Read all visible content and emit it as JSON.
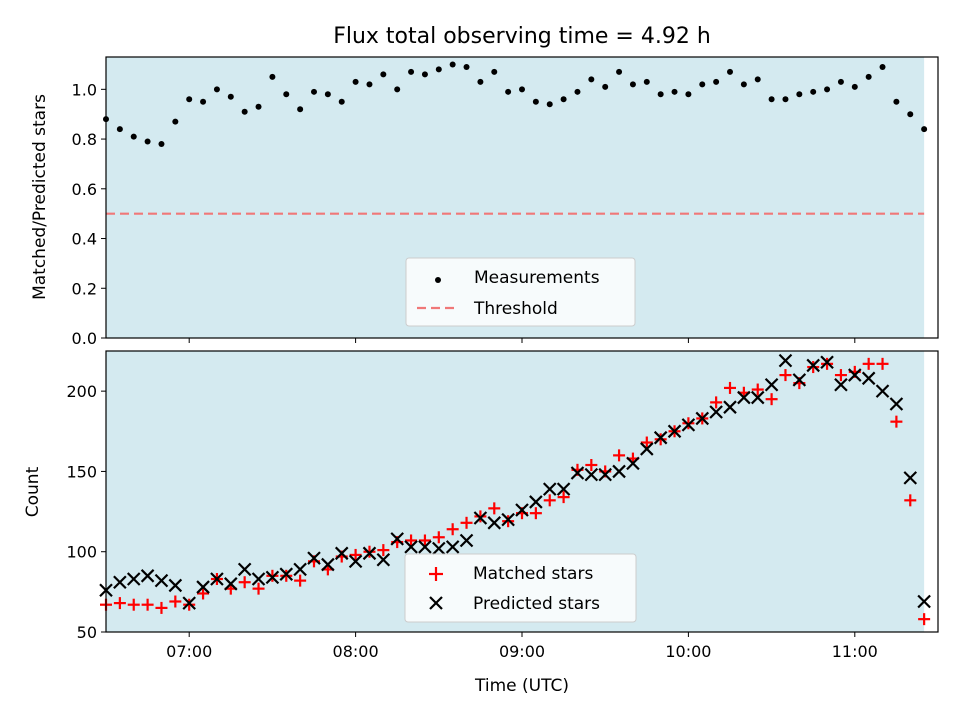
{
  "chart_data": {
    "title": "Flux total observing time = 4.92 h",
    "xlabel": "Time (UTC)",
    "x_ticks": [
      "07:00",
      "08:00",
      "09:00",
      "10:00",
      "11:00"
    ],
    "shaded_range": [
      "06:30",
      "11:25"
    ],
    "shade_color": "#d4eaf0",
    "panels": [
      {
        "name": "ratio",
        "type": "scatter",
        "ylabel": "Matched/Predicted stars",
        "ylim": [
          0,
          1.13
        ],
        "y_ticks": [
          "0.0",
          "0.2",
          "0.4",
          "0.6",
          "0.8",
          "1.0"
        ],
        "legend_position": "lower-center",
        "series": [
          {
            "name": "Measurements",
            "marker": "dot",
            "color": "#000000",
            "x": [
              "06:30",
              "06:35",
              "06:40",
              "06:45",
              "06:50",
              "06:55",
              "07:00",
              "07:05",
              "07:10",
              "07:15",
              "07:20",
              "07:25",
              "07:30",
              "07:35",
              "07:40",
              "07:45",
              "07:50",
              "07:55",
              "08:00",
              "08:05",
              "08:10",
              "08:15",
              "08:20",
              "08:25",
              "08:30",
              "08:35",
              "08:40",
              "08:45",
              "08:50",
              "08:55",
              "09:00",
              "09:05",
              "09:10",
              "09:15",
              "09:20",
              "09:25",
              "09:30",
              "09:35",
              "09:40",
              "09:45",
              "09:50",
              "09:55",
              "10:00",
              "10:05",
              "10:10",
              "10:15",
              "10:20",
              "10:25",
              "10:30",
              "10:35",
              "10:40",
              "10:45",
              "10:50",
              "10:55",
              "11:00",
              "11:05",
              "11:10",
              "11:15",
              "11:20",
              "11:25"
            ],
            "y": [
              0.88,
              0.84,
              0.81,
              0.79,
              0.78,
              0.87,
              0.96,
              0.95,
              1.0,
              0.97,
              0.91,
              0.93,
              1.05,
              0.98,
              0.92,
              0.99,
              0.98,
              0.95,
              1.03,
              1.02,
              1.06,
              1.0,
              1.07,
              1.06,
              1.08,
              1.1,
              1.09,
              1.03,
              1.07,
              0.99,
              1.0,
              0.95,
              0.94,
              0.96,
              0.99,
              1.04,
              1.01,
              1.07,
              1.02,
              1.03,
              0.98,
              0.99,
              0.98,
              1.02,
              1.03,
              1.07,
              1.02,
              1.04,
              0.96,
              0.96,
              0.98,
              0.99,
              1.0,
              1.03,
              1.01,
              1.05,
              1.09,
              0.95,
              0.9,
              0.84
            ]
          },
          {
            "name": "Threshold",
            "marker": "dashed-line",
            "color": "#f07878",
            "y_value": 0.5
          }
        ]
      },
      {
        "name": "counts",
        "type": "scatter",
        "ylabel": "Count",
        "ylim": [
          50,
          225
        ],
        "y_ticks": [
          "50",
          "100",
          "150",
          "200"
        ],
        "legend_position": "lower-center",
        "series": [
          {
            "name": "Matched stars",
            "marker": "plus",
            "color": "#ff0000",
            "x": [
              "06:30",
              "06:35",
              "06:40",
              "06:45",
              "06:50",
              "06:55",
              "07:00",
              "07:05",
              "07:10",
              "07:15",
              "07:20",
              "07:25",
              "07:30",
              "07:35",
              "07:40",
              "07:45",
              "07:50",
              "07:55",
              "08:00",
              "08:05",
              "08:10",
              "08:15",
              "08:20",
              "08:25",
              "08:30",
              "08:35",
              "08:40",
              "08:45",
              "08:50",
              "08:55",
              "09:00",
              "09:05",
              "09:10",
              "09:15",
              "09:20",
              "09:25",
              "09:30",
              "09:35",
              "09:40",
              "09:45",
              "09:50",
              "09:55",
              "10:00",
              "10:05",
              "10:10",
              "10:15",
              "10:20",
              "10:25",
              "10:30",
              "10:35",
              "10:40",
              "10:45",
              "10:50",
              "10:55",
              "11:00",
              "11:05",
              "11:10",
              "11:15",
              "11:20",
              "11:25"
            ],
            "y": [
              67,
              68,
              67,
              67,
              65,
              69,
              67,
              74,
              83,
              77,
              81,
              77,
              85,
              85,
              82,
              94,
              89,
              97,
              98,
              100,
              101,
              106,
              107,
              107,
              109,
              114,
              118,
              122,
              127,
              119,
              124,
              124,
              132,
              134,
              151,
              154,
              150,
              160,
              158,
              168,
              170,
              175,
              180,
              183,
              193,
              202,
              199,
              201,
              195,
              210,
              205,
              215,
              217,
              210,
              212,
              217,
              217,
              181,
              132,
              58
            ]
          },
          {
            "name": "Predicted stars",
            "marker": "x",
            "color": "#000000",
            "x": [
              "06:30",
              "06:35",
              "06:40",
              "06:45",
              "06:50",
              "06:55",
              "07:00",
              "07:05",
              "07:10",
              "07:15",
              "07:20",
              "07:25",
              "07:30",
              "07:35",
              "07:40",
              "07:45",
              "07:50",
              "07:55",
              "08:00",
              "08:05",
              "08:10",
              "08:15",
              "08:20",
              "08:25",
              "08:30",
              "08:35",
              "08:40",
              "08:45",
              "08:50",
              "08:55",
              "09:00",
              "09:05",
              "09:10",
              "09:15",
              "09:20",
              "09:25",
              "09:30",
              "09:35",
              "09:40",
              "09:45",
              "09:50",
              "09:55",
              "10:00",
              "10:05",
              "10:10",
              "10:15",
              "10:20",
              "10:25",
              "10:30",
              "10:35",
              "10:40",
              "10:45",
              "10:50",
              "10:55",
              "11:00",
              "11:05",
              "11:10",
              "11:15",
              "11:20",
              "11:25"
            ],
            "y": [
              76,
              81,
              83,
              85,
              82,
              79,
              68,
              78,
              83,
              80,
              89,
              83,
              84,
              86,
              89,
              96,
              92,
              99,
              94,
              99,
              95,
              108,
              103,
              103,
              102,
              103,
              107,
              121,
              118,
              120,
              126,
              131,
              139,
              139,
              149,
              148,
              148,
              150,
              155,
              164,
              171,
              175,
              179,
              183,
              187,
              190,
              196,
              196,
              204,
              219,
              207,
              216,
              218,
              204,
              210,
              208,
              200,
              192,
              146,
              69
            ]
          }
        ]
      }
    ]
  }
}
